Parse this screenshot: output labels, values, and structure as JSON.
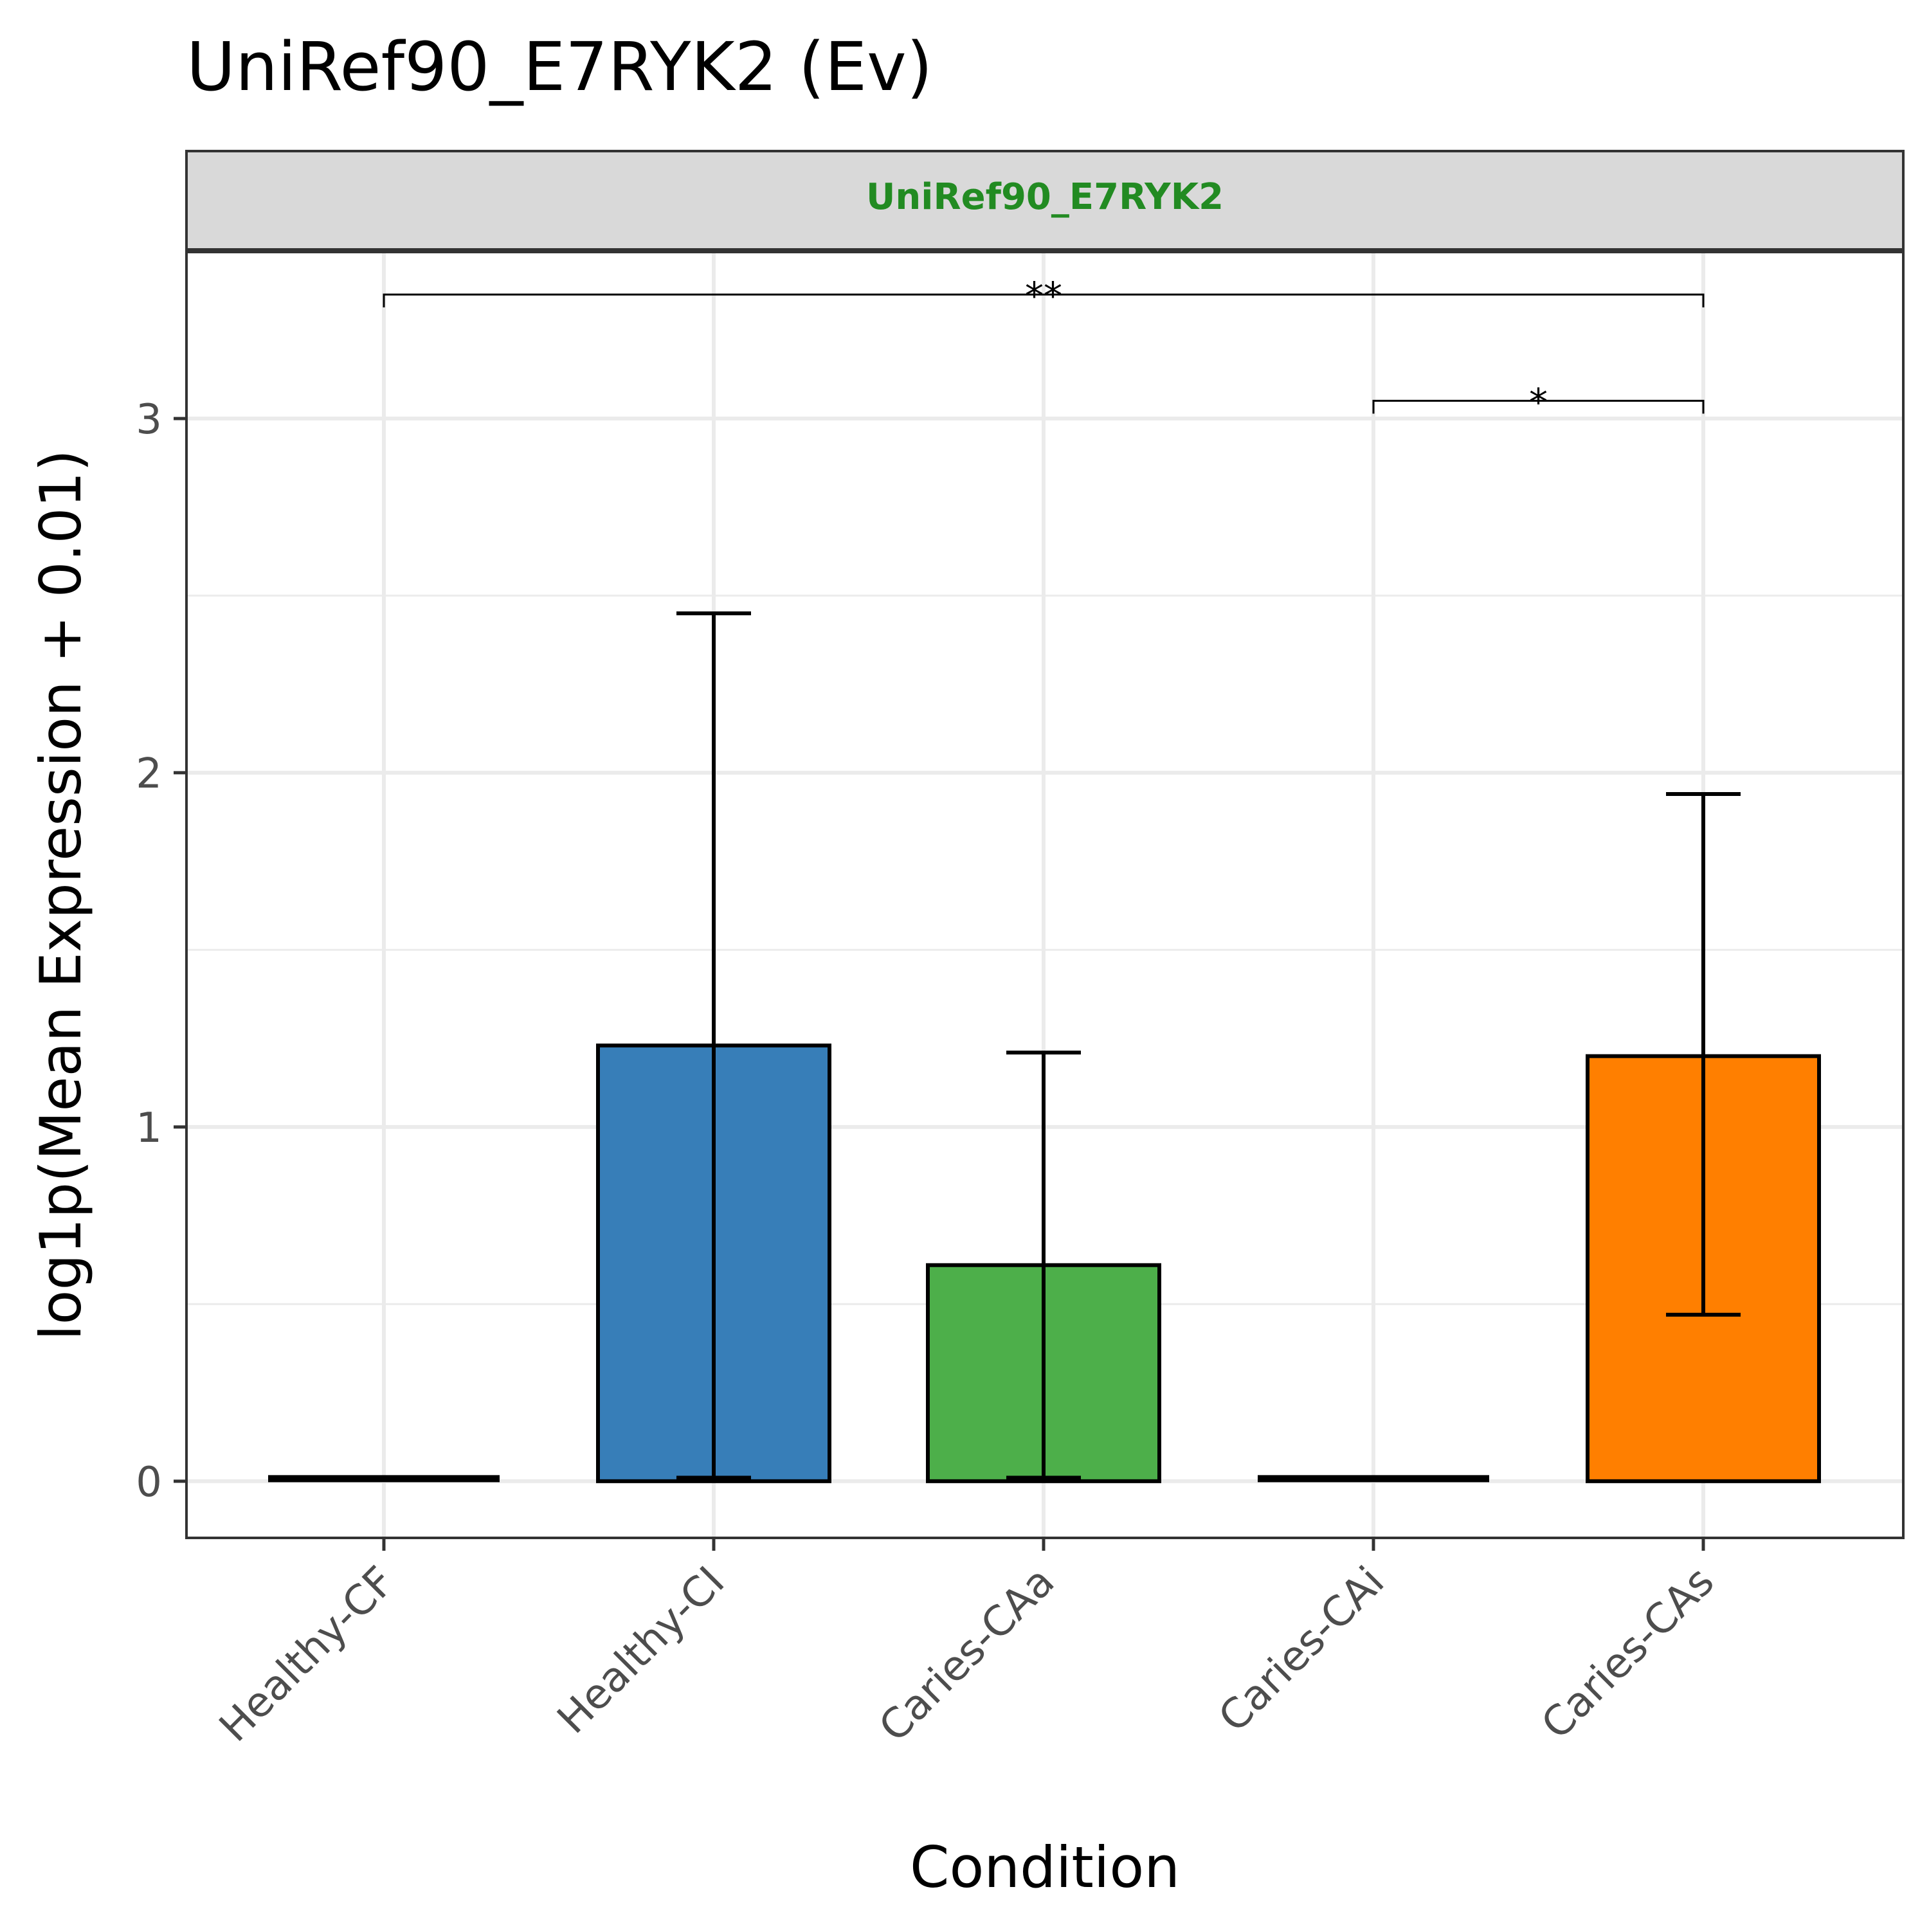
{
  "chart_data": {
    "type": "bar",
    "title": "UniRef90_E7RYK2 (Ev)",
    "facet_label": "UniRef90_E7RYK2",
    "xlabel": "Condition",
    "ylabel": "log1p(Mean Expression + 0.01)",
    "categories": [
      "Healthy-CF",
      "Healthy-CI",
      "Caries-CAa",
      "Caries-CAi",
      "Caries-CAs"
    ],
    "values": [
      0.0,
      1.23,
      0.61,
      0.0,
      1.2
    ],
    "error_low": [
      0.0,
      0.01,
      0.01,
      0.0,
      0.47
    ],
    "error_high": [
      0.0,
      2.45,
      1.21,
      0.0,
      1.94
    ],
    "colors": [
      "#8b8b8b",
      "#377eb8",
      "#4daf4a",
      "#984ea3",
      "#ff7f00"
    ],
    "ylim": [
      -0.16,
      3.47
    ],
    "yticks": [
      "0",
      "1",
      "2",
      "3"
    ],
    "grid": true,
    "legend": "none",
    "significance": [
      {
        "from": "Healthy-CF",
        "to": "Caries-CAs",
        "y": 3.35,
        "label": "**"
      },
      {
        "from": "Caries-CAi",
        "to": "Caries-CAs",
        "y": 3.05,
        "label": "*"
      }
    ],
    "facet_label_color": "#228b22"
  }
}
